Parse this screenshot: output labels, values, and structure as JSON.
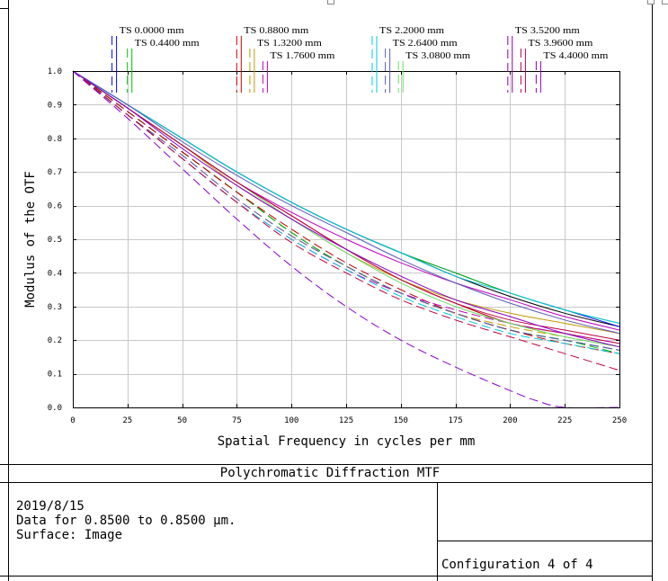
{
  "chart_data": {
    "type": "line",
    "title": "Polychromatic Diffraction MTF",
    "xlabel": "Spatial Frequency in cycles per mm",
    "ylabel": "Modulus of the OTF",
    "xlim": [
      0,
      250
    ],
    "ylim": [
      0,
      1.0
    ],
    "xticks": [
      "0",
      "25",
      "50",
      "75",
      "100",
      "125",
      "150",
      "175",
      "200",
      "225",
      "250"
    ],
    "yticks": [
      "0.0",
      "0.1",
      "0.2",
      "0.3",
      "0.4",
      "0.5",
      "0.6",
      "0.7",
      "0.8",
      "0.9",
      "1.0"
    ],
    "grid": true,
    "legend_entries": [
      {
        "label": "TS 0.0000 mm",
        "color": "#0000ff",
        "marker_x": 20
      },
      {
        "label": "TS 0.4400 mm",
        "color": "#00c000",
        "marker_x": 27
      },
      {
        "label": "TS 0.8800 mm",
        "color": "#c00000",
        "marker_x": 77
      },
      {
        "label": "TS 1.3200 mm",
        "color": "#c09a00",
        "marker_x": 83
      },
      {
        "label": "TS 1.7600 mm",
        "color": "#c000c0",
        "marker_x": 89
      },
      {
        "label": "TS 2.2000 mm",
        "color": "#00c8e0",
        "marker_x": 139
      },
      {
        "label": "TS 2.6400 mm",
        "color": "#5a5ab8",
        "marker_x": 145
      },
      {
        "label": "TS 3.0800 mm",
        "color": "#66dd66",
        "marker_x": 151
      },
      {
        "label": "TS 3.5200 mm",
        "color": "#8800aa",
        "marker_x": 201
      },
      {
        "label": "TS 3.9600 mm",
        "color": "#c00040",
        "marker_x": 207
      },
      {
        "label": "TS 4.4000 mm",
        "color": "#8800cc",
        "marker_x": 214
      }
    ],
    "series": [
      {
        "color": "#000000",
        "dash": false,
        "x": [
          0,
          25,
          50,
          75,
          100,
          125,
          150,
          175,
          200,
          225,
          250
        ],
        "y": [
          1.0,
          0.9,
          0.8,
          0.7,
          0.61,
          0.53,
          0.46,
          0.39,
          0.33,
          0.28,
          0.24
        ]
      },
      {
        "color": "#000000",
        "dash": true,
        "x": [
          0,
          25,
          50,
          75,
          100,
          125,
          150,
          175,
          200,
          225,
          250
        ],
        "y": [
          1.0,
          0.88,
          0.76,
          0.64,
          0.52,
          0.42,
          0.34,
          0.28,
          0.23,
          0.2,
          0.17
        ]
      },
      {
        "color": "#0000ff",
        "dash": false,
        "x": [
          0,
          25,
          50,
          75,
          100,
          125,
          150,
          175,
          200,
          225,
          250
        ],
        "y": [
          1.0,
          0.9,
          0.8,
          0.7,
          0.61,
          0.53,
          0.46,
          0.4,
          0.34,
          0.29,
          0.24
        ]
      },
      {
        "color": "#00c000",
        "dash": false,
        "x": [
          0,
          25,
          50,
          75,
          100,
          125,
          150,
          175,
          200,
          225,
          250
        ],
        "y": [
          1.0,
          0.9,
          0.8,
          0.7,
          0.61,
          0.53,
          0.46,
          0.4,
          0.34,
          0.29,
          0.25
        ]
      },
      {
        "color": "#00c000",
        "dash": true,
        "x": [
          0,
          25,
          50,
          75,
          100,
          125,
          150,
          175,
          200,
          225,
          250
        ],
        "y": [
          1.0,
          0.88,
          0.76,
          0.64,
          0.52,
          0.42,
          0.34,
          0.28,
          0.23,
          0.2,
          0.16
        ]
      },
      {
        "color": "#c00000",
        "dash": false,
        "x": [
          0,
          25,
          50,
          75,
          100,
          125,
          150,
          175,
          200,
          225,
          250
        ],
        "y": [
          1.0,
          0.89,
          0.78,
          0.67,
          0.57,
          0.47,
          0.38,
          0.31,
          0.25,
          0.22,
          0.19
        ]
      },
      {
        "color": "#c00000",
        "dash": true,
        "x": [
          0,
          25,
          50,
          75,
          100,
          125,
          150,
          175,
          200,
          225,
          250
        ],
        "y": [
          1.0,
          0.88,
          0.76,
          0.64,
          0.53,
          0.43,
          0.35,
          0.28,
          0.23,
          0.19,
          0.16
        ]
      },
      {
        "color": "#c09a00",
        "dash": false,
        "x": [
          0,
          25,
          50,
          75,
          100,
          125,
          150,
          175,
          200,
          225,
          250
        ],
        "y": [
          1.0,
          0.89,
          0.78,
          0.66,
          0.56,
          0.46,
          0.38,
          0.32,
          0.28,
          0.25,
          0.22
        ]
      },
      {
        "color": "#c09a00",
        "dash": true,
        "x": [
          0,
          25,
          50,
          75,
          100,
          125,
          150,
          175,
          200,
          225,
          250
        ],
        "y": [
          1.0,
          0.87,
          0.75,
          0.62,
          0.51,
          0.42,
          0.34,
          0.28,
          0.24,
          0.21,
          0.18
        ]
      },
      {
        "color": "#c000c0",
        "dash": false,
        "x": [
          0,
          25,
          50,
          75,
          100,
          125,
          150,
          175,
          200,
          225,
          250
        ],
        "y": [
          1.0,
          0.89,
          0.78,
          0.67,
          0.58,
          0.5,
          0.43,
          0.37,
          0.32,
          0.27,
          0.23
        ]
      },
      {
        "color": "#c000c0",
        "dash": true,
        "x": [
          0,
          25,
          50,
          75,
          100,
          125,
          150,
          175,
          200,
          225,
          250
        ],
        "y": [
          1.0,
          0.87,
          0.74,
          0.61,
          0.5,
          0.41,
          0.34,
          0.29,
          0.25,
          0.22,
          0.19
        ]
      },
      {
        "color": "#00c8e0",
        "dash": false,
        "x": [
          0,
          25,
          50,
          75,
          100,
          125,
          150,
          175,
          200,
          225,
          250
        ],
        "y": [
          1.0,
          0.9,
          0.8,
          0.7,
          0.61,
          0.53,
          0.46,
          0.39,
          0.34,
          0.29,
          0.25
        ]
      },
      {
        "color": "#00c8e0",
        "dash": true,
        "x": [
          0,
          25,
          50,
          75,
          100,
          125,
          150,
          175,
          200,
          225,
          250
        ],
        "y": [
          1.0,
          0.87,
          0.74,
          0.61,
          0.5,
          0.41,
          0.33,
          0.27,
          0.22,
          0.19,
          0.16
        ]
      },
      {
        "color": "#5a5ab8",
        "dash": false,
        "x": [
          0,
          25,
          50,
          75,
          100,
          125,
          150,
          175,
          200,
          225,
          250
        ],
        "y": [
          1.0,
          0.9,
          0.79,
          0.69,
          0.6,
          0.52,
          0.44,
          0.37,
          0.31,
          0.26,
          0.22
        ]
      },
      {
        "color": "#5a5ab8",
        "dash": true,
        "x": [
          0,
          25,
          50,
          75,
          100,
          125,
          150,
          175,
          200,
          225,
          250
        ],
        "y": [
          1.0,
          0.87,
          0.75,
          0.62,
          0.51,
          0.42,
          0.34,
          0.28,
          0.23,
          0.2,
          0.17
        ]
      },
      {
        "color": "#66dd66",
        "dash": false,
        "x": [
          0,
          25,
          50,
          75,
          100,
          125,
          150,
          175,
          200,
          225,
          250
        ],
        "y": [
          1.0,
          0.89,
          0.78,
          0.67,
          0.56,
          0.46,
          0.37,
          0.3,
          0.25,
          0.21,
          0.18
        ]
      },
      {
        "color": "#c00040",
        "dash": false,
        "x": [
          0,
          25,
          50,
          75,
          100,
          125,
          150,
          175,
          200,
          225,
          250
        ],
        "y": [
          1.0,
          0.89,
          0.78,
          0.67,
          0.57,
          0.47,
          0.38,
          0.31,
          0.26,
          0.23,
          0.2
        ]
      },
      {
        "color": "#c00040",
        "dash": true,
        "x": [
          0,
          25,
          50,
          75,
          100,
          125,
          150,
          175,
          200,
          225,
          250
        ],
        "y": [
          1.0,
          0.87,
          0.74,
          0.61,
          0.49,
          0.4,
          0.32,
          0.26,
          0.21,
          0.16,
          0.11
        ]
      },
      {
        "color": "#8800cc",
        "dash": false,
        "x": [
          0,
          25,
          50,
          75,
          100,
          125,
          150,
          175,
          200,
          225,
          250
        ],
        "y": [
          1.0,
          0.89,
          0.77,
          0.66,
          0.56,
          0.47,
          0.39,
          0.32,
          0.27,
          0.22,
          0.18
        ]
      },
      {
        "color": "#8800cc",
        "dash": true,
        "x": [
          0,
          25,
          50,
          75,
          100,
          125,
          150,
          175,
          200,
          212,
          225,
          250
        ],
        "y": [
          1.0,
          0.86,
          0.71,
          0.56,
          0.42,
          0.3,
          0.2,
          0.12,
          0.05,
          0.02,
          0.0,
          0.0
        ]
      }
    ]
  },
  "report": {
    "date": "2019/8/15",
    "data_line": "Data for 0.8500 to 0.8500 µm.",
    "surface": "Surface: Image",
    "config": "Configuration 4 of 4"
  }
}
